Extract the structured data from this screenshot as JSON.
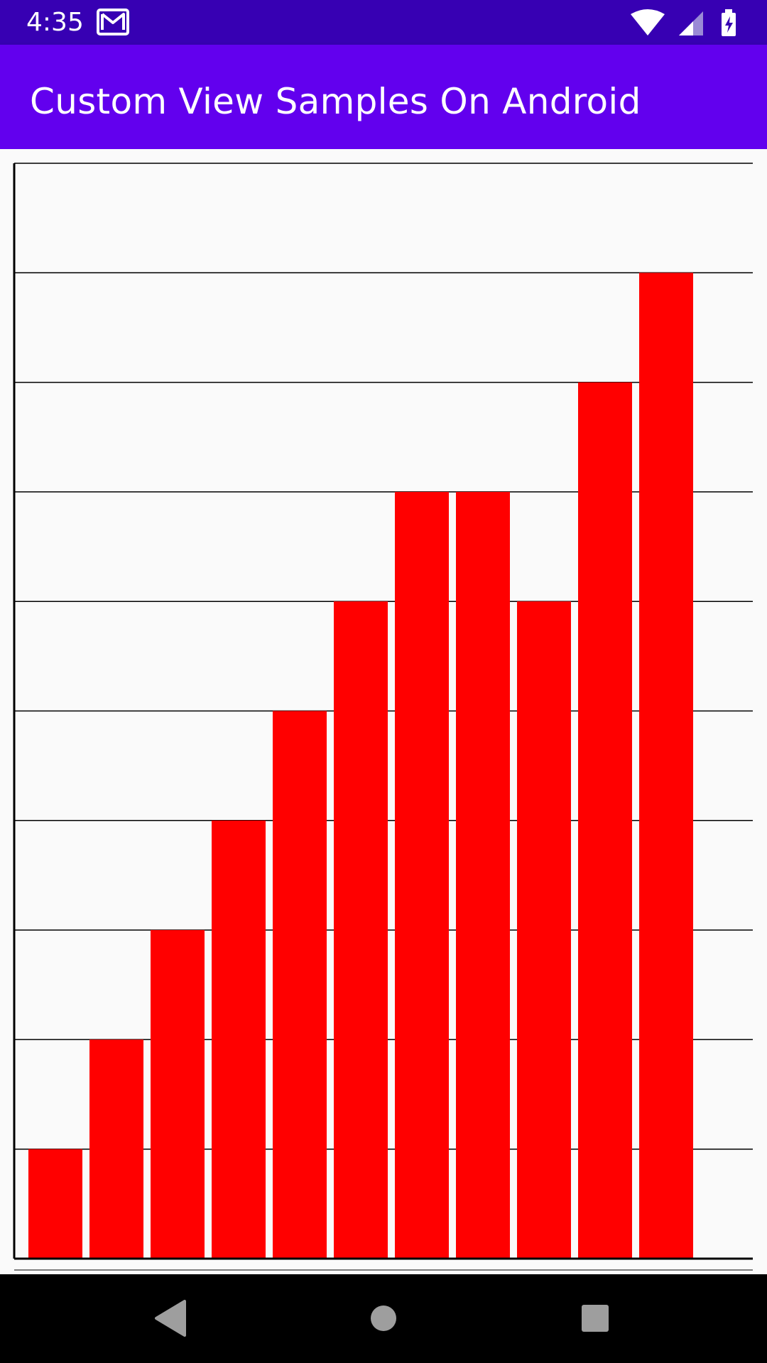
{
  "status_bar": {
    "time": "4:35",
    "icons": [
      "gmail-icon",
      "wifi-icon",
      "cellular-signal-icon",
      "battery-charging-icon"
    ],
    "background": "#3700b3"
  },
  "app_bar": {
    "title": "Custom View Samples On Android",
    "background": "#6200ee"
  },
  "chart_data": {
    "type": "bar",
    "categories": [
      "",
      "",
      "",
      "",
      "",
      "",
      "",
      "",
      "",
      "",
      ""
    ],
    "values": [
      1,
      2,
      3,
      4,
      5,
      6,
      7,
      7,
      6,
      8,
      9
    ],
    "ylim": [
      0,
      10
    ],
    "grid": true,
    "bar_color": "#ff0000",
    "grid_color": "#000000"
  },
  "nav_bar": {
    "buttons": [
      "back-icon",
      "home-icon",
      "recents-icon"
    ],
    "background": "#000000"
  }
}
